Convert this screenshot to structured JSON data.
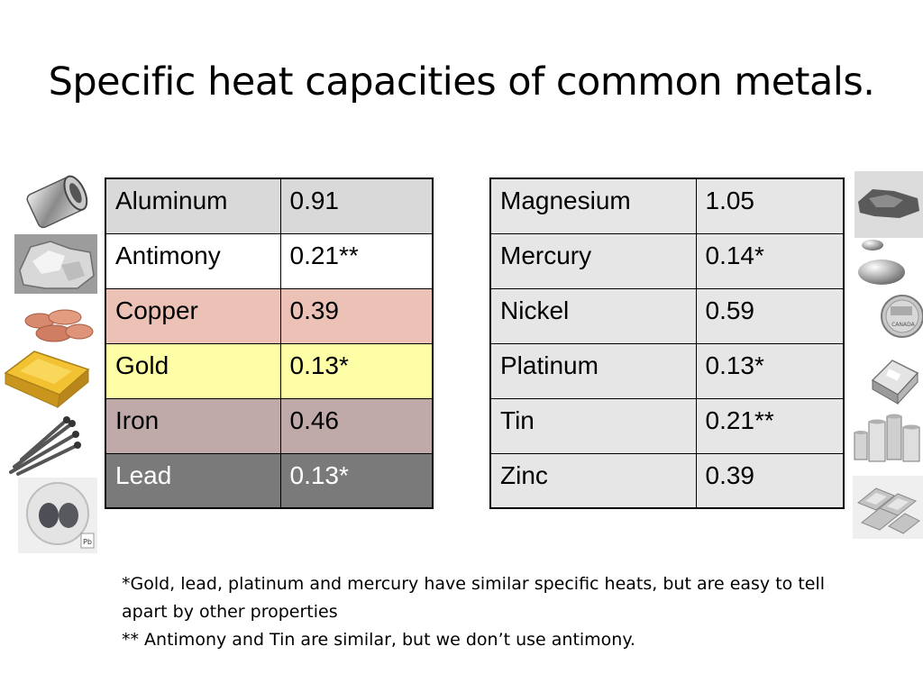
{
  "slide": {
    "title": "Specific heat capacities of common metals."
  },
  "left_table": [
    {
      "metal": "Aluminum",
      "value": "0.91",
      "bg": "#d9d9d9",
      "fg": "#000000"
    },
    {
      "metal": "Antimony",
      "value": "0.21**",
      "bg": "#ffffff",
      "fg": "#000000"
    },
    {
      "metal": "Copper",
      "value": "0.39",
      "bg": "#ecc2b6",
      "fg": "#000000"
    },
    {
      "metal": "Gold",
      "value": "0.13*",
      "bg": "#fefea6",
      "fg": "#000000"
    },
    {
      "metal": "Iron",
      "value": "0.46",
      "bg": "#bfa9a9",
      "fg": "#000000"
    },
    {
      "metal": "Lead",
      "value": "0.13*",
      "bg": "#7a7a7a",
      "fg": "#ffffff"
    }
  ],
  "right_table": [
    {
      "metal": "Magnesium",
      "value": "1.05"
    },
    {
      "metal": "Mercury",
      "value": "0.14*"
    },
    {
      "metal": "Nickel",
      "value": "0.59"
    },
    {
      "metal": "Platinum",
      "value": "0.13*"
    },
    {
      "metal": "Tin",
      "value": "0.21**"
    },
    {
      "metal": "Zinc",
      "value": "0.39"
    }
  ],
  "footnotes": {
    "line1": "*Gold, lead, platinum and mercury have similar specific heats, but are easy to tell apart by other properties",
    "line2": "** Antimony and Tin are similar, but we don’t use antimony."
  },
  "coin_text": "CANADA",
  "lead_label": "Pb"
}
